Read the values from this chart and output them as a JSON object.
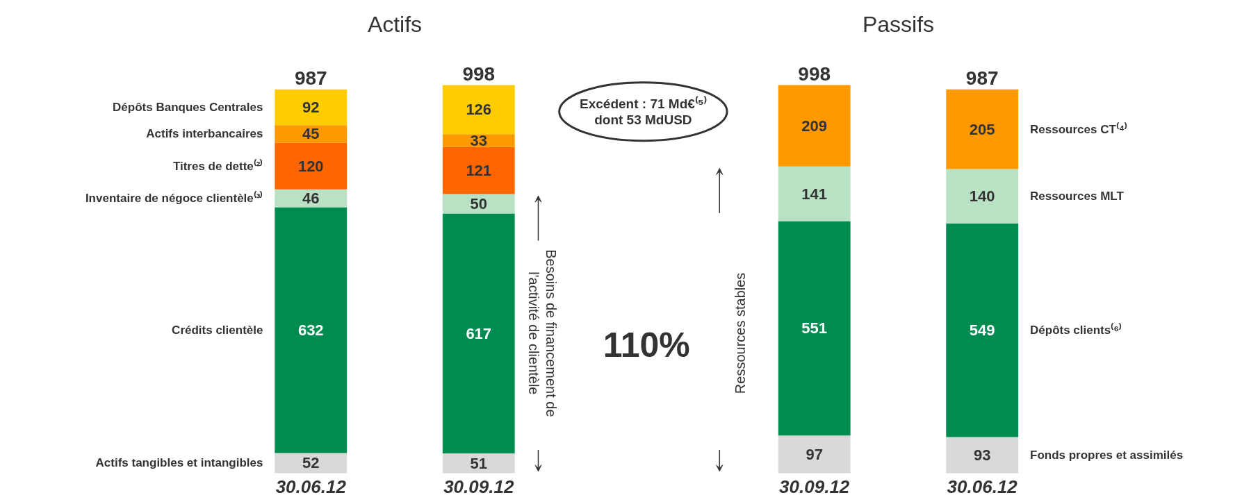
{
  "chart_data": {
    "type": "bar",
    "stacked": true,
    "data_labels": true,
    "categories": [
      "30.06.12",
      "30.09.12",
      "30.09.12",
      "30.06.12"
    ],
    "series": [
      {
        "name": "Actifs tangibles et intangibles",
        "color": "#d9d9d9",
        "values": [
          52,
          51,
          null,
          null
        ]
      },
      {
        "name": "Crédits clientèle",
        "color": "#008c50",
        "values": [
          632,
          617,
          null,
          null
        ]
      },
      {
        "name": "Inventaire de négoce clientèle⁽³⁾",
        "color": "#b9e2c4",
        "values": [
          46,
          50,
          null,
          null
        ]
      },
      {
        "name": "Titres de dette⁽²⁾",
        "color": "#ff6600",
        "values": [
          120,
          121,
          null,
          null
        ]
      },
      {
        "name": "Actifs interbancaires",
        "color": "#ff9900",
        "values": [
          45,
          33,
          null,
          null
        ]
      },
      {
        "name": "Dépôts Banques Centrales",
        "color": "#ffcc00",
        "values": [
          92,
          126,
          null,
          null
        ]
      },
      {
        "name": "Fonds propres et assimilés",
        "color": "#d9d9d9",
        "values": [
          null,
          null,
          97,
          93
        ]
      },
      {
        "name": "Dépôts clients⁽⁶⁾",
        "color": "#008c50",
        "values": [
          null,
          null,
          551,
          549
        ]
      },
      {
        "name": "Ressources MLT",
        "color": "#b9e2c4",
        "values": [
          null,
          null,
          141,
          140
        ]
      },
      {
        "name": "Ressources CT⁽⁴⁾",
        "color": "#ff9900",
        "values": [
          null,
          null,
          209,
          205
        ]
      }
    ],
    "totals": [
      "987",
      "998",
      "998",
      "987"
    ],
    "annotations": [
      "Actifs",
      "Passifs",
      "Excédent : 71 Md€⁽⁵⁾\ndont 53 MdUSD",
      "110%",
      "Besoins de financement de\nl'activité de clientèle",
      "Ressources stables"
    ]
  }
}
